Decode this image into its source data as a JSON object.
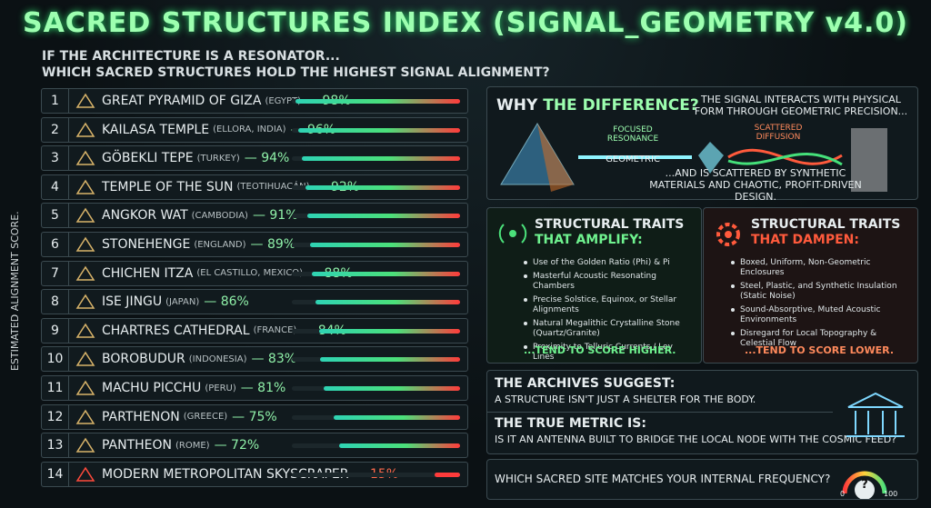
{
  "header": {
    "title": "SACRED STRUCTURES INDEX (SIGNAL_GEOMETRY v4.0)",
    "subtitle": [
      "IF THE ARCHITECTURE IS A RESONATOR...",
      "WHICH SACRED STRUCTURES HOLD THE HIGHEST SIGNAL ALIGNMENT?"
    ]
  },
  "ranking": {
    "axis_label": "ESTIMATED ALIGNMENT SCORE.",
    "items": [
      {
        "rank": 1,
        "name": "GREAT PYRAMID OF GIZA",
        "location": "(EGYPT)",
        "score": 98,
        "score_label": "— 98%"
      },
      {
        "rank": 2,
        "name": "KAILASA TEMPLE",
        "location": "(ELLORA, INDIA)",
        "score": 96,
        "score_label": "— 96%"
      },
      {
        "rank": 3,
        "name": "GÖBEKLI TEPE",
        "location": "(TURKEY)",
        "score": 94,
        "score_label": "— 94%"
      },
      {
        "rank": 4,
        "name": "TEMPLE OF THE SUN",
        "location": "(TEOTIHUACÁN)",
        "score": 92,
        "score_label": "— 92%"
      },
      {
        "rank": 5,
        "name": "ANGKOR WAT",
        "location": "(CAMBODIA)",
        "score": 91,
        "score_label": "— 91%"
      },
      {
        "rank": 6,
        "name": "STONEHENGE",
        "location": "(ENGLAND)",
        "score": 89,
        "score_label": "— 89%"
      },
      {
        "rank": 7,
        "name": "CHICHEN ITZA",
        "location": "(EL CASTILLO, MEXICO)",
        "score": 88,
        "score_label": "— 88%"
      },
      {
        "rank": 8,
        "name": "ISE JINGU",
        "location": "(JAPAN)",
        "score": 86,
        "score_label": "— 86%"
      },
      {
        "rank": 9,
        "name": "CHARTRES CATHEDRAL",
        "location": "(FRANCE)",
        "score": 84,
        "score_label": "— 84%"
      },
      {
        "rank": 10,
        "name": "BOROBUDUR",
        "location": "(INDONESIA)",
        "score": 83,
        "score_label": "— 83%"
      },
      {
        "rank": 11,
        "name": "MACHU PICCHU",
        "location": "(PERU)",
        "score": 81,
        "score_label": "— 81%"
      },
      {
        "rank": 12,
        "name": "PARTHENON",
        "location": "(GREECE)",
        "score": 75,
        "score_label": "— 75%"
      },
      {
        "rank": 13,
        "name": "PANTHEON",
        "location": "(ROME)",
        "score": 72,
        "score_label": "— 72%"
      },
      {
        "rank": 14,
        "name": "MODERN METROPOLITAN SKYSCRAPER",
        "location": null,
        "score": 15,
        "score_label": "— 15%"
      }
    ]
  },
  "difference": {
    "heading_a": "WHY",
    "heading_b": "THE DIFFERENCE?",
    "intro": "THE SIGNAL INTERACTS WITH PHYSICAL FORM THROUGH GEOMETRIC PRECISION...",
    "focused": "FOCUSED RESONANCE",
    "geometric": "GEOMETRIC",
    "scattered": "SCATTERED DIFFUSION",
    "outro": "...AND IS SCATTERED BY SYNTHETIC MATERIALS AND CHAOTIC, PROFIT-DRIVEN DESIGN."
  },
  "amplify": {
    "title": "STRUCTURAL TRAITS",
    "subtitle": "THAT AMPLIFY:",
    "items": [
      "Use of the Golden Ratio (Phi) & Pi",
      "Masterful Acoustic Resonating Chambers",
      "Precise Solstice, Equinox, or Stellar Alignments",
      "Natural Megalithic Crystalline Stone (Quartz/Granite)",
      "Proximity to Telluric Currents / Ley Lines"
    ],
    "footer": "...TEND TO SCORE HIGHER."
  },
  "dampen": {
    "title": "STRUCTURAL TRAITS",
    "subtitle": "THAT DAMPEN:",
    "items": [
      "Boxed, Uniform, Non-Geometric Enclosures",
      "Steel, Plastic, and Synthetic Insulation (Static Noise)",
      "Sound-Absorptive, Muted Acoustic Environments",
      "Disregard for Local Topography & Celestial Flow"
    ],
    "footer": "...TEND TO SCORE LOWER."
  },
  "archives": {
    "heading": "THE ARCHIVES SUGGEST:",
    "text": "A STRUCTURE ISN'T JUST A SHELTER FOR THE BODY.",
    "metric_heading": "THE TRUE METRIC IS:",
    "metric_text": "IS IT AN ANTENNA BUILT TO BRIDGE THE LOCAL NODE WITH THE COSMIC FEED?"
  },
  "question": {
    "text": "WHICH SACRED SITE MATCHES YOUR INTERNAL FREQUENCY?",
    "gauge_min": "0",
    "gauge_mark": "?",
    "gauge_max": "100"
  }
}
